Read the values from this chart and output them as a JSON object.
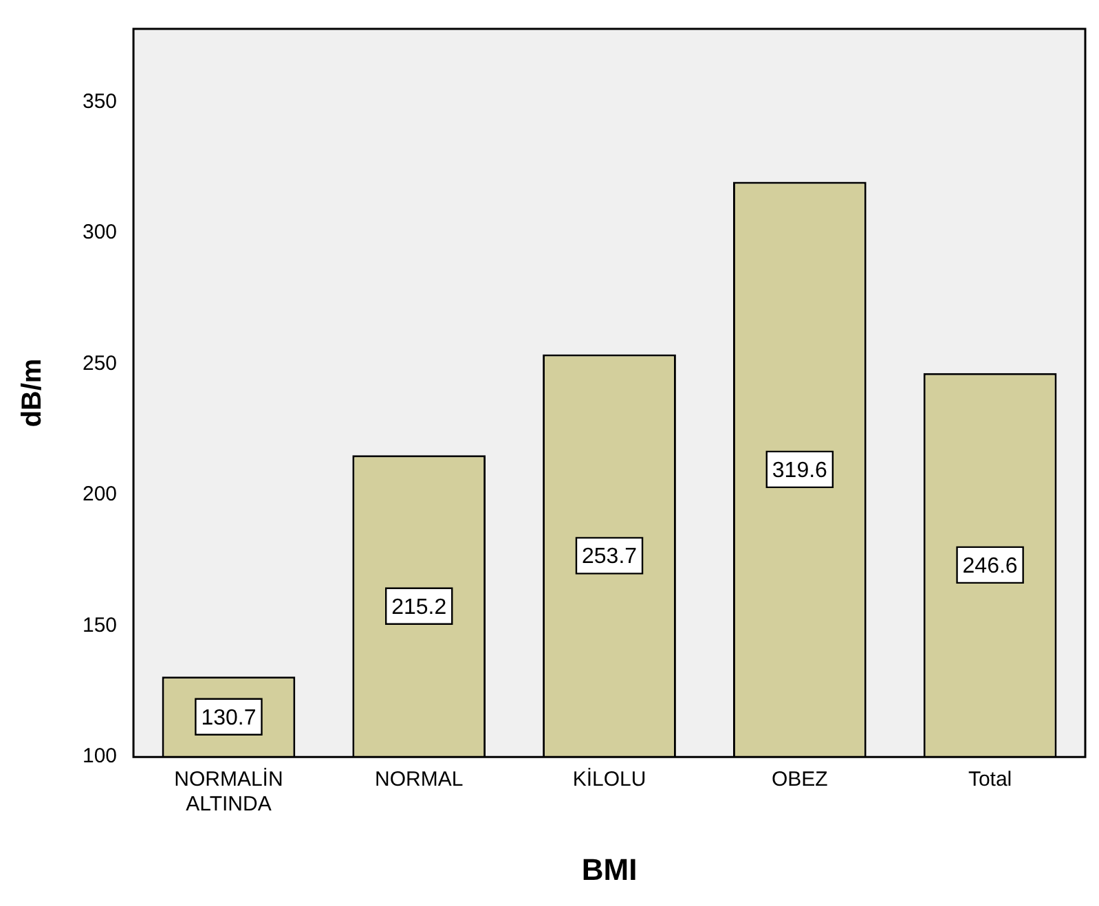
{
  "chart_data": {
    "type": "bar",
    "xlabel": "BMI",
    "ylabel": "dB/m",
    "categories": [
      "NORMALİN ALTINDA",
      "NORMAL",
      "KİLOLU",
      "OBEZ",
      "Total"
    ],
    "values": [
      130.7,
      215.2,
      253.7,
      319.6,
      246.6
    ],
    "color": "#d3cf9c",
    "ylim": [
      100,
      378
    ],
    "yticks": [
      100,
      150,
      200,
      250,
      300,
      350
    ],
    "grid": false,
    "legend": false,
    "data_labels": true
  }
}
